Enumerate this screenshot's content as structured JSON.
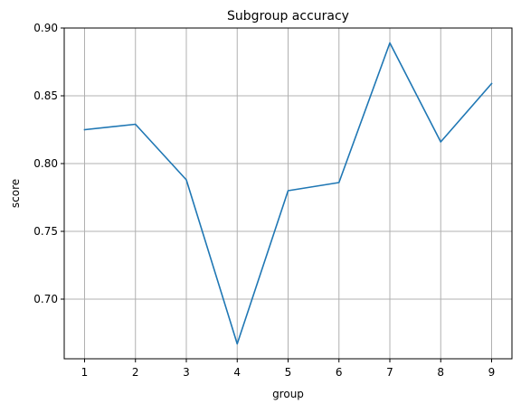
{
  "chart_data": {
    "type": "line",
    "title": "Subgroup accuracy",
    "xlabel": "group",
    "ylabel": "score",
    "x": [
      1,
      2,
      3,
      4,
      5,
      6,
      7,
      8,
      9
    ],
    "series": [
      {
        "values": [
          0.825,
          0.829,
          0.788,
          0.667,
          0.78,
          0.786,
          0.889,
          0.816,
          0.859
        ],
        "color": "#1f77b4"
      }
    ],
    "xticks": [
      1,
      2,
      3,
      4,
      5,
      6,
      7,
      8,
      9
    ],
    "xtick_labels": [
      "1",
      "2",
      "3",
      "4",
      "5",
      "6",
      "7",
      "8",
      "9"
    ],
    "yticks": [
      0.7,
      0.75,
      0.8,
      0.85,
      0.9
    ],
    "ytick_labels": [
      "0.70",
      "0.75",
      "0.80",
      "0.85",
      "0.90"
    ],
    "xlim": [
      0.6,
      9.4
    ],
    "ylim": [
      0.656,
      0.9
    ],
    "grid": true,
    "grid_color": "#b0b0b0",
    "axis_color": "#000000"
  }
}
